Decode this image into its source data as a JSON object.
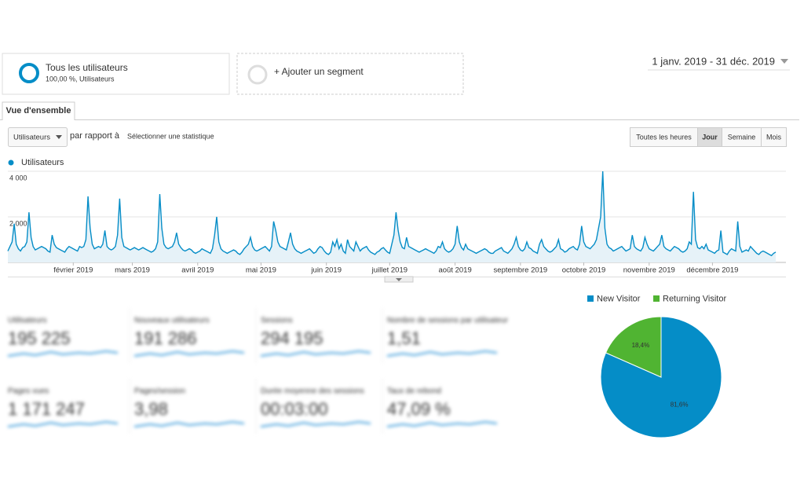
{
  "segments": [
    {
      "title": "Tous les utilisateurs",
      "subtitle": "100,00 %, Utilisateurs"
    },
    {
      "title": "+ Ajouter un segment"
    }
  ],
  "date_range": "1 janv. 2019 - 31 déc. 2019",
  "tab": "Vue d'ensemble",
  "controls": {
    "metric": "Utilisateurs",
    "compare": "par rapport à",
    "select": "Sélectionner une statistique",
    "periods": [
      "Toutes les heures",
      "Jour",
      "Semaine",
      "Mois"
    ],
    "active_period": 1
  },
  "metrics": [
    {
      "label": "Utilisateurs",
      "value": "195 225"
    },
    {
      "label": "Nouveaux utilisateurs",
      "value": "191 286"
    },
    {
      "label": "Sessions",
      "value": "294 195"
    },
    {
      "label": "Nombre de sessions par utilisateur",
      "value": "1,51"
    },
    {
      "label": "Pages vues",
      "value": "1 171 247"
    },
    {
      "label": "Pages/session",
      "value": "3,98"
    },
    {
      "label": "Durée moyenne des sessions",
      "value": "00:03:00"
    },
    {
      "label": "Taux de rebond",
      "value": "47,09 %"
    }
  ],
  "chart_data": [
    {
      "type": "line",
      "series": [
        {
          "name": "Utilisateurs",
          "color": "#058dc7",
          "values": [
            500,
            700,
            900,
            1700,
            800,
            600,
            500,
            650,
            700,
            900,
            2200,
            1100,
            700,
            550,
            600,
            650,
            700,
            650,
            600,
            500,
            450,
            1200,
            800,
            650,
            600,
            550,
            500,
            450,
            600,
            700,
            650,
            600,
            550,
            500,
            700,
            650,
            700,
            1000,
            2900,
            1500,
            800,
            600,
            650,
            700,
            650,
            800,
            1400,
            700,
            600,
            550,
            600,
            700,
            1200,
            2800,
            1100,
            700,
            650,
            600,
            550,
            600,
            650,
            600,
            550,
            600,
            650,
            600,
            550,
            500,
            450,
            500,
            600,
            900,
            3000,
            1500,
            800,
            650,
            600,
            650,
            700,
            900,
            1300,
            800,
            650,
            550,
            500,
            550,
            600,
            550,
            450,
            400,
            450,
            500,
            600,
            550,
            500,
            450,
            400,
            600,
            1200,
            2000,
            900,
            600,
            500,
            450,
            400,
            450,
            500,
            550,
            500,
            400,
            350,
            450,
            600,
            700,
            800,
            1100,
            700,
            550,
            500,
            550,
            600,
            650,
            700,
            600,
            500,
            700,
            1800,
            1400,
            900,
            700,
            650,
            600,
            550,
            900,
            1300,
            800,
            600,
            500,
            450,
            400,
            450,
            500,
            550,
            600,
            500,
            400,
            450,
            600,
            700,
            650,
            500,
            400,
            350,
            450,
            900,
            700,
            1000,
            600,
            800,
            500,
            400,
            1000,
            700,
            600,
            500,
            900,
            700,
            500,
            600,
            650,
            700,
            550,
            450,
            400,
            350,
            450,
            500,
            600,
            650,
            550,
            450,
            400,
            800,
            1200,
            2200,
            1400,
            900,
            650,
            600,
            1100,
            700,
            650,
            600,
            550,
            500,
            450,
            500,
            550,
            600,
            550,
            500,
            450,
            400,
            500,
            700,
            650,
            900,
            600,
            500,
            450,
            500,
            600,
            800,
            1600,
            900,
            650,
            550,
            800,
            600,
            550,
            500,
            450,
            400,
            450,
            500,
            550,
            600,
            550,
            450,
            400,
            400,
            500,
            550,
            600,
            650,
            500,
            450,
            400,
            500,
            600,
            800,
            1100,
            700,
            550,
            500,
            600,
            900,
            650,
            600,
            500,
            450,
            400,
            800,
            1000,
            700,
            600,
            500,
            450,
            500,
            600,
            700,
            1000,
            600,
            550,
            450,
            500,
            600,
            650,
            700,
            600,
            550,
            800,
            1600,
            900,
            700,
            650,
            600,
            700,
            800,
            1000,
            1500,
            2000,
            4000,
            1500,
            800,
            650,
            600,
            500,
            550,
            600,
            650,
            700,
            600,
            500,
            550,
            600,
            1200,
            700,
            600,
            550,
            500,
            650,
            1100,
            800,
            600,
            550,
            500,
            600,
            700,
            800,
            1200,
            700,
            600,
            550,
            500,
            600,
            700,
            650,
            600,
            500,
            450,
            500,
            600,
            900,
            800,
            3100,
            1000,
            650,
            600,
            700,
            600,
            800,
            550,
            500,
            450,
            400,
            500,
            550,
            1400,
            450,
            400,
            350,
            500,
            600,
            550,
            500,
            1800,
            700,
            450,
            500,
            550,
            500,
            700,
            600,
            500,
            400,
            350,
            450,
            500,
            450,
            400,
            350,
            300,
            400,
            450
          ]
        }
      ],
      "xlim": [
        0,
        364
      ],
      "xticks": [
        {
          "value": 31,
          "label": "février 2019"
        },
        {
          "value": 59,
          "label": "mars 2019"
        },
        {
          "value": 90,
          "label": "avril 2019"
        },
        {
          "value": 120,
          "label": "mai 2019"
        },
        {
          "value": 151,
          "label": "juin 2019"
        },
        {
          "value": 181,
          "label": "juillet 2019"
        },
        {
          "value": 212,
          "label": "août 2019"
        },
        {
          "value": 243,
          "label": "septembre 2019"
        },
        {
          "value": 273,
          "label": "octobre 2019"
        },
        {
          "value": 304,
          "label": "novembre 2019"
        },
        {
          "value": 334,
          "label": "décembre 2019"
        }
      ],
      "ylim": [
        0,
        4000
      ],
      "yticks": [
        {
          "value": 2000,
          "label": "2 000"
        },
        {
          "value": 4000,
          "label": "4 000"
        }
      ],
      "grid": true
    },
    {
      "type": "pie",
      "categories": [
        "New Visitor",
        "Returning Visitor"
      ],
      "values": [
        81.6,
        18.4
      ],
      "value_labels": [
        "81,6%",
        "18,4%"
      ],
      "colors": [
        "#058dc7",
        "#50b432"
      ],
      "legend": "top"
    }
  ]
}
